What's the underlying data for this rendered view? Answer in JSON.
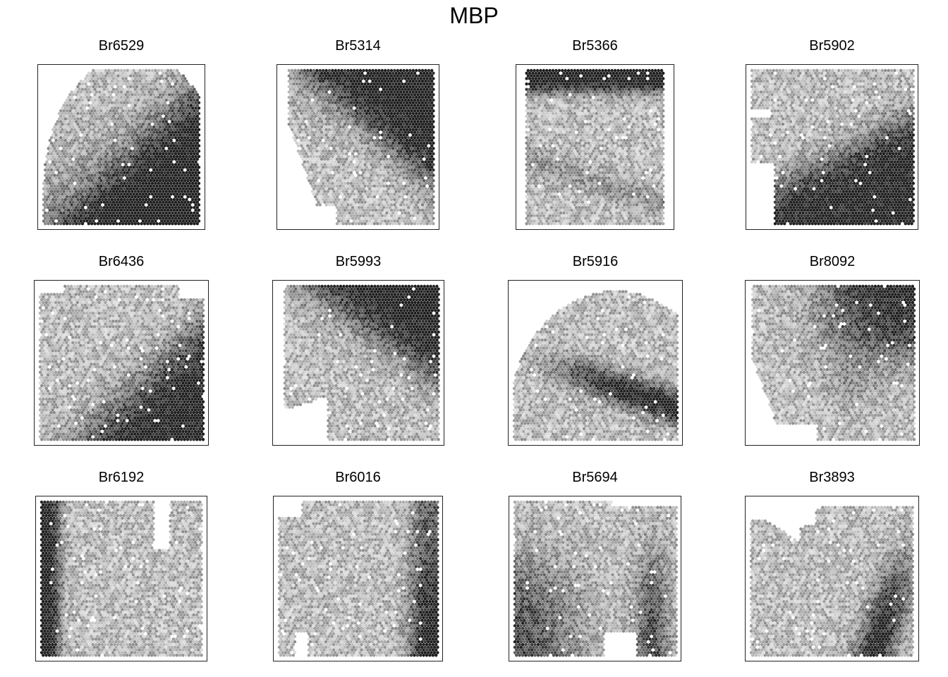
{
  "figure": {
    "title": "MBP"
  },
  "chart_data": {
    "type": "heatmap",
    "title": "MBP",
    "layout": "3x4 grid of spatial spot maps",
    "colormap": "grayscale (light = low, dark = high)",
    "panels": [
      {
        "title": "Br6529",
        "shape": "rounded-top",
        "dark_region": "bottom-right corner",
        "level": 0.35
      },
      {
        "title": "Br5314",
        "shape": "diagonal-left-cut",
        "dark_region": "top-right corner",
        "level": 0.35
      },
      {
        "title": "Br5366",
        "shape": "square",
        "dark_region": "top band",
        "level": 0.3
      },
      {
        "title": "Br5902",
        "shape": "square",
        "dark_region": "bottom-right diagonal half",
        "level": 0.45
      },
      {
        "title": "Br6436",
        "shape": "ragged-top",
        "dark_region": "bottom-right corner",
        "level": 0.3
      },
      {
        "title": "Br5993",
        "shape": "bottom-left notch",
        "dark_region": "top-right corner",
        "level": 0.35
      },
      {
        "title": "Br5916",
        "shape": "rounded-top",
        "dark_region": "middle-right band",
        "level": 0.35
      },
      {
        "title": "Br8092",
        "shape": "tapered-bottom-left",
        "dark_region": "top-right block",
        "level": 0.4
      },
      {
        "title": "Br6192",
        "shape": "square",
        "dark_region": "left strip",
        "level": 0.3
      },
      {
        "title": "Br6016",
        "shape": "square",
        "dark_region": "right strip",
        "level": 0.3
      },
      {
        "title": "Br5694",
        "shape": "square",
        "dark_region": "bottom-left and right bands",
        "level": 0.35
      },
      {
        "title": "Br3893",
        "shape": "v-notch-top",
        "dark_region": "right-middle curve",
        "level": 0.35
      }
    ]
  }
}
